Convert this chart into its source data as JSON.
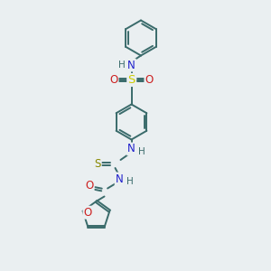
{
  "background_color": "#eaeff1",
  "bond_color": "#3a6b6b",
  "atom_colors": {
    "N": "#2020cc",
    "O": "#cc2020",
    "S_sulfone": "#cccc00",
    "S_thio": "#888800",
    "H": "#3a6b6b",
    "C": "#3a6b6b"
  },
  "line_width": 1.4,
  "font_size": 8.5
}
